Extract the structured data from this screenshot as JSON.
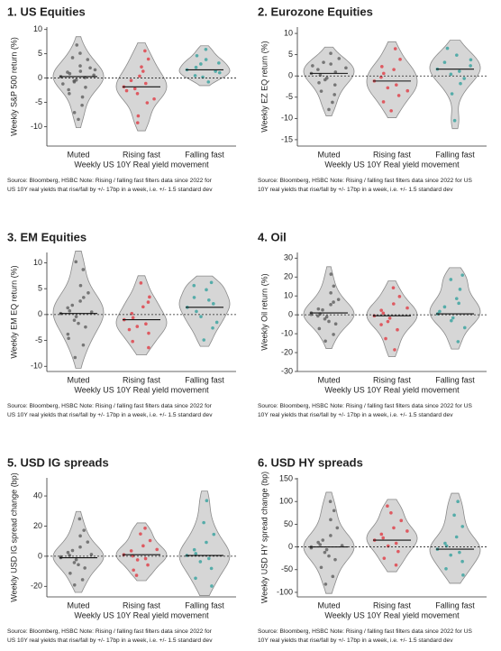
{
  "chart_data": [
    {
      "type": "violin",
      "title": "1. US Equities",
      "ylabel": "Weekly S&P 500 return (%)",
      "xlabel": "Weekly US 10Y Real yield movement",
      "categories": [
        "Muted",
        "Rising fast",
        "Falling fast"
      ],
      "groups": [
        {
          "color": "#555555",
          "median": 0.3,
          "values": [
            0.3,
            1.2,
            -0.8,
            2.5,
            -1.9,
            3.8,
            -3.2,
            0.9,
            -0.4,
            5.1,
            -5.6,
            1.7,
            -2.4,
            6.8,
            -8.5,
            0.1,
            2.1,
            -1.2,
            4.2,
            -0.6,
            1.4,
            -3.9,
            0.6,
            -7.1
          ]
        },
        {
          "color": "#e0303a",
          "median": -1.8,
          "values": [
            -1.8,
            -0.5,
            -3.2,
            1.4,
            -5.1,
            3.9,
            -2.6,
            -7.8,
            0.4,
            -1.1,
            5.6,
            -4.3,
            -9.2,
            -2.2,
            2.3
          ]
        },
        {
          "color": "#2a9d9a",
          "median": 1.7,
          "values": [
            1.7,
            0.5,
            2.9,
            3.8,
            -0.8,
            1.1,
            4.6,
            2.2,
            0.2,
            5.9,
            1.4,
            3.1
          ]
        }
      ],
      "ylim": [
        -14,
        10.5
      ],
      "yticks": [
        10,
        5,
        0,
        -5,
        -10
      ],
      "hline": 0,
      "source": [
        "Source: Bloomberg, HSBC    Note: Rising / falling fast filters data since 2022 for",
        "US 10Y real yields that rise/fall by +/- 17bp in a week, i.e. +/- 1.5 standard dev"
      ]
    },
    {
      "type": "violin",
      "title": "2. Eurozone Equities",
      "ylabel": "Weekly EZ EQ return (%)",
      "xlabel": "Weekly US 10Y Real yield movement",
      "categories": [
        "Muted",
        "Rising fast",
        "Falling fast"
      ],
      "groups": [
        {
          "color": "#555555",
          "median": 0.6,
          "values": [
            0.6,
            1.5,
            -0.9,
            2.8,
            -2.1,
            4.1,
            -3.6,
            0.2,
            -0.5,
            5.3,
            -6.2,
            1.9,
            -1.6,
            3.2,
            -7.9,
            0.9,
            -4.4,
            2.4
          ]
        },
        {
          "color": "#e0303a",
          "median": -1.2,
          "values": [
            -1.2,
            -0.3,
            -2.8,
            1.5,
            -4.6,
            3.9,
            -6.1,
            0.6,
            -8.2,
            -2.1,
            6.4,
            -3.5,
            2.2
          ]
        },
        {
          "color": "#2a9d9a",
          "median": 1.6,
          "values": [
            1.6,
            3.2,
            0.4,
            4.9,
            -1.8,
            2.4,
            6.5,
            -4.2,
            -10.5,
            1.1,
            -0.6,
            3.8
          ]
        }
      ],
      "ylim": [
        -16.5,
        11.5
      ],
      "yticks": [
        10,
        5,
        0,
        -5,
        -10,
        -15
      ],
      "hline": 0,
      "source": [
        "Source: Bloomberg, HSBC    Note: Rising / falling fast filters data since 2022 for US",
        "10Y real yields that rise/fall by +/- 17bp in a week, i.e. +/- 1.5 standard dev"
      ]
    },
    {
      "type": "violin",
      "title": "3. EM Equities",
      "ylabel": "Weekly EM EQ return (%)",
      "xlabel": "Weekly US 10Y Real yield movement",
      "categories": [
        "Muted",
        "Rising fast",
        "Falling fast"
      ],
      "groups": [
        {
          "color": "#555555",
          "median": 0.2,
          "values": [
            0.2,
            1.3,
            -1.1,
            2.6,
            -2.4,
            4.2,
            -3.8,
            0.7,
            -0.4,
            5.6,
            -5.9,
            8.7,
            -8.3,
            1.8,
            -1.7,
            3.3,
            0.5,
            -4.6,
            10.2
          ]
        },
        {
          "color": "#e0303a",
          "median": -1.0,
          "values": [
            -1.0,
            0.2,
            -2.3,
            1.5,
            -3.6,
            3.4,
            -5.2,
            -0.6,
            6.1,
            -1.8,
            2.4,
            -6.4,
            -2.9
          ]
        },
        {
          "color": "#2a9d9a",
          "median": 1.4,
          "values": [
            1.4,
            3.3,
            -0.4,
            4.8,
            2.1,
            -2.6,
            5.6,
            0.6,
            -4.9,
            2.8,
            6.2,
            -1.5
          ]
        }
      ],
      "ylim": [
        -11,
        12
      ],
      "yticks": [
        10,
        5,
        0,
        -5,
        -10
      ],
      "hline": 0,
      "source": [
        "Source: Bloomberg, HSBC    Note: Rising / falling fast filters data since 2022 for",
        "US 10Y real yields that rise/fall by +/- 17bp in a week, i.e. +/- 1.5 standard dev"
      ]
    },
    {
      "type": "violin",
      "title": "4. Oil",
      "ylabel": "Weekly Oil return (%)",
      "xlabel": "Weekly US 10Y Real yield movement",
      "categories": [
        "Muted",
        "Rising fast",
        "Falling fast"
      ],
      "groups": [
        {
          "color": "#555555",
          "median": 1.0,
          "values": [
            1.0,
            3.1,
            -2.2,
            5.4,
            -4.8,
            8.1,
            -7.3,
            0.5,
            -1.1,
            11.6,
            -10.4,
            15.2,
            -13.9,
            2.6,
            -3.5,
            6.7,
            21.5,
            0.2,
            -0.6
          ]
        },
        {
          "color": "#e0303a",
          "median": -0.5,
          "values": [
            -0.5,
            2.4,
            -3.6,
            5.8,
            -7.9,
            9.7,
            -12.6,
            0.9,
            -1.8,
            14.3,
            -18.5,
            3.6,
            -5.2
          ]
        },
        {
          "color": "#2a9d9a",
          "median": 0.5,
          "values": [
            0.5,
            4.2,
            -3.1,
            8.6,
            13.5,
            -6.8,
            1.8,
            18.7,
            -1.6,
            6.1,
            -14.2,
            21.0
          ]
        }
      ],
      "ylim": [
        -30,
        33
      ],
      "yticks": [
        30,
        20,
        10,
        0,
        -10,
        -20,
        -30
      ],
      "hline": 0,
      "source": [
        "Source: Bloomberg, HSBC    Note: Rising / falling fast filters data since 2022 for US",
        "10Y real yields that rise/fall by +/- 17bp in a week, i.e. +/- 1.5 standard dev"
      ]
    },
    {
      "type": "violin",
      "title": "5. USD IG spreads",
      "ylabel": "Weekly USD IG spread change (bp)",
      "xlabel": "Weekly US 10Y Real yield movement",
      "categories": [
        "Muted",
        "Rising fast",
        "Falling fast"
      ],
      "groups": [
        {
          "color": "#555555",
          "median": -1,
          "values": [
            -1,
            2.5,
            -4.2,
            6.1,
            -7.8,
            9.4,
            -11.3,
            0.6,
            -2.3,
            13.5,
            -15.6,
            17.2,
            -19.1,
            3.8,
            -5.6,
            24.8,
            1.2,
            -0.4
          ]
        },
        {
          "color": "#e0303a",
          "median": 1,
          "values": [
            1,
            3.6,
            -2.4,
            6.9,
            -5.8,
            10.4,
            -9.2,
            0.2,
            14.8,
            -1.6,
            18.6,
            4.5,
            -12.7
          ]
        },
        {
          "color": "#2a9d9a",
          "median": 0.5,
          "values": [
            0.5,
            4.3,
            -3.6,
            9.2,
            -8.1,
            14.5,
            -14.6,
            1.8,
            22.3,
            -1.5,
            36.9,
            -19.8
          ]
        }
      ],
      "ylim": [
        -27,
        52
      ],
      "yticks": [
        40,
        20,
        0,
        -20
      ],
      "hline": 0,
      "source": [
        "Source: Bloomberg, HSBC    Note: Rising / falling fast filters data since 2022 for",
        "US 10Y real yields that rise/fall by +/- 17bp in a week, i.e. +/- 1.5 standard dev"
      ]
    },
    {
      "type": "violin",
      "title": "6. USD HY spreads",
      "ylabel": "Weekly USD HY spread change (bp)",
      "xlabel": "Weekly US 10Y Real yield movement",
      "categories": [
        "Muted",
        "Rising fast",
        "Falling fast"
      ],
      "groups": [
        {
          "color": "#555555",
          "median": 0,
          "values": [
            0,
            10,
            -12,
            25,
            -28,
            42,
            -45,
            5,
            -6,
            60,
            -65,
            80,
            -82,
            15,
            -20,
            100,
            3,
            -2
          ]
        },
        {
          "color": "#e0303a",
          "median": 15,
          "values": [
            15,
            28,
            2,
            42,
            -10,
            58,
            -25,
            20,
            75,
            8,
            -40,
            35,
            90
          ]
        },
        {
          "color": "#2a9d9a",
          "median": -5,
          "values": [
            -5,
            8,
            -18,
            22,
            -32,
            45,
            -48,
            2,
            70,
            -12,
            100,
            -62
          ]
        }
      ],
      "ylim": [
        -110,
        152
      ],
      "yticks": [
        150,
        100,
        50,
        0,
        -50,
        -100
      ],
      "hline": 0,
      "source": [
        "Source: Bloomberg, HSBC    Note: Rising / falling fast filters data since 2022 for US",
        "10Y real yields that rise/fall by +/- 17bp in a week, i.e. +/- 1.5 standard dev"
      ]
    }
  ]
}
